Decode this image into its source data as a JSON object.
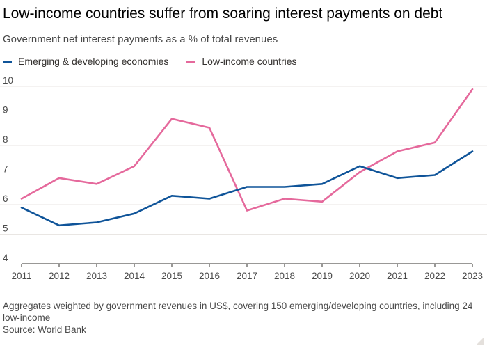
{
  "title": "Low-income countries suffer from soaring interest payments on debt",
  "subtitle": "Government net interest payments as a % of total revenues",
  "footnote": "Aggregates weighted by government revenues in US$, covering 150 emerging/developing countries, including 24 low-income",
  "source": "Source: World Bank",
  "colors": {
    "emerging": "#0f5499",
    "low_income": "#e5699c",
    "grid": "#e9e6e3",
    "axis": "#33302e",
    "text": "#4a4a4a"
  },
  "chart_data": {
    "type": "line",
    "x": [
      2011,
      2012,
      2013,
      2014,
      2015,
      2016,
      2017,
      2018,
      2019,
      2020,
      2021,
      2022,
      2023
    ],
    "ylim": [
      4,
      10
    ],
    "yticks": [
      4,
      5,
      6,
      7,
      8,
      9,
      10
    ],
    "grid": true,
    "legend": "top-left",
    "series": [
      {
        "name": "Emerging & developing economies",
        "color": "#0f5499",
        "values": [
          5.9,
          5.3,
          5.4,
          5.7,
          6.3,
          6.2,
          6.6,
          6.6,
          6.7,
          7.3,
          6.9,
          7.0,
          7.8
        ]
      },
      {
        "name": "Low-income countries",
        "color": "#e5699c",
        "values": [
          6.2,
          6.9,
          6.7,
          7.3,
          8.9,
          8.6,
          5.8,
          6.2,
          6.1,
          7.1,
          7.8,
          8.1,
          9.9
        ]
      }
    ]
  }
}
